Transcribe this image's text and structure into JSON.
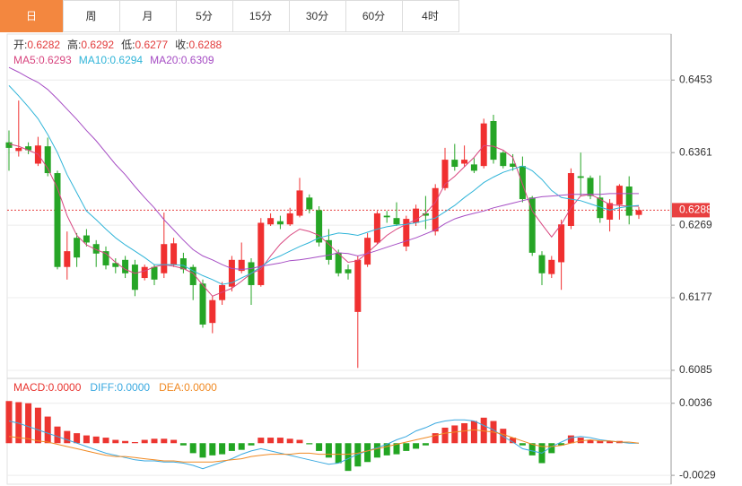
{
  "tabs": [
    "日",
    "周",
    "月",
    "5分",
    "15分",
    "30分",
    "60分",
    "4时"
  ],
  "active_tab": 0,
  "chart_data": [
    {
      "type": "candlestick",
      "info": [
        {
          "label": "开:",
          "value": 0.6282
        },
        {
          "label": "高:",
          "value": 0.6292
        },
        {
          "label": "低:",
          "value": 0.6277
        },
        {
          "label": "收:",
          "value": 0.6288
        }
      ],
      "up_color": "#f03030",
      "down_color": "#26a526",
      "ylim": [
        0.6077,
        0.6509
      ],
      "yticks": [
        0.6453,
        0.6361,
        0.6269,
        0.6177,
        0.6085
      ],
      "grid": true,
      "last_price": 0.6288,
      "candles": {
        "open": [
          0.6374,
          0.6363,
          0.6369,
          0.6347,
          0.6369,
          0.6335,
          0.6216,
          0.6253,
          0.6256,
          0.6245,
          0.6236,
          0.6221,
          0.6225,
          0.6219,
          0.6202,
          0.6216,
          0.6208,
          0.6219,
          0.6227,
          0.6216,
          0.6195,
          0.6145,
          0.6174,
          0.6191,
          0.6211,
          0.6222,
          0.6193,
          0.627,
          0.6274,
          0.627,
          0.6281,
          0.6304,
          0.6288,
          0.625,
          0.6234,
          0.6213,
          0.6159,
          0.6219,
          0.6247,
          0.6281,
          0.6278,
          0.6242,
          0.6272,
          0.6284,
          0.6261,
          0.6316,
          0.6352,
          0.6347,
          0.6346,
          0.6344,
          0.6401,
          0.6361,
          0.6347,
          0.6344,
          0.6304,
          0.6231,
          0.6207,
          0.6222,
          0.6268,
          0.6331,
          0.6329,
          0.6304,
          0.6276,
          0.6295,
          0.6318,
          0.6282
        ],
        "high": [
          0.6389,
          0.6427,
          0.6374,
          0.6381,
          0.638,
          0.6338,
          0.6261,
          0.6259,
          0.6264,
          0.625,
          0.6242,
          0.6227,
          0.623,
          0.6225,
          0.6219,
          0.6219,
          0.6285,
          0.6253,
          0.6234,
          0.6219,
          0.62,
          0.6179,
          0.6197,
          0.623,
          0.6247,
          0.6227,
          0.6278,
          0.6284,
          0.6281,
          0.6291,
          0.6329,
          0.6308,
          0.6293,
          0.6264,
          0.6238,
          0.6219,
          0.623,
          0.6259,
          0.6287,
          0.6287,
          0.6298,
          0.6281,
          0.6295,
          0.6306,
          0.6321,
          0.6367,
          0.6372,
          0.637,
          0.6354,
          0.6404,
          0.6409,
          0.6363,
          0.6359,
          0.6356,
          0.6306,
          0.6236,
          0.623,
          0.6276,
          0.6341,
          0.6361,
          0.6332,
          0.6332,
          0.6302,
          0.6321,
          0.6331,
          0.6292
        ],
        "low": [
          0.6338,
          0.6356,
          0.6359,
          0.6344,
          0.6331,
          0.6213,
          0.62,
          0.6216,
          0.6242,
          0.6216,
          0.6213,
          0.6208,
          0.6202,
          0.6179,
          0.6199,
          0.6193,
          0.6202,
          0.6216,
          0.6208,
          0.6174,
          0.6139,
          0.6132,
          0.6168,
          0.6185,
          0.6208,
          0.6168,
          0.6191,
          0.6268,
          0.6264,
          0.6268,
          0.6279,
          0.6284,
          0.6242,
          0.6219,
          0.6204,
          0.62,
          0.6088,
          0.6216,
          0.6245,
          0.6272,
          0.6268,
          0.6236,
          0.6268,
          0.6264,
          0.6256,
          0.6313,
          0.6338,
          0.6343,
          0.6335,
          0.6341,
          0.6347,
          0.6341,
          0.6338,
          0.6298,
          0.623,
          0.6193,
          0.6202,
          0.6187,
          0.6264,
          0.6306,
          0.6302,
          0.6272,
          0.6261,
          0.6276,
          0.627,
          0.6277
        ],
        "close": [
          0.6367,
          0.6367,
          0.6364,
          0.637,
          0.6335,
          0.6216,
          0.6236,
          0.6228,
          0.6247,
          0.6233,
          0.6218,
          0.6216,
          0.6208,
          0.6187,
          0.6216,
          0.62,
          0.6245,
          0.6246,
          0.6213,
          0.6193,
          0.6143,
          0.6174,
          0.6193,
          0.6225,
          0.6225,
          0.6193,
          0.6272,
          0.6278,
          0.627,
          0.6284,
          0.6313,
          0.6289,
          0.6247,
          0.6225,
          0.6208,
          0.6208,
          0.6225,
          0.6253,
          0.6284,
          0.6279,
          0.627,
          0.6277,
          0.629,
          0.6281,
          0.6316,
          0.6352,
          0.6343,
          0.6352,
          0.6338,
          0.6398,
          0.6352,
          0.6344,
          0.6343,
          0.6302,
          0.6234,
          0.6208,
          0.6225,
          0.627,
          0.6335,
          0.6329,
          0.6306,
          0.6278,
          0.6297,
          0.6319,
          0.6281,
          0.6288
        ]
      },
      "series": [
        {
          "name": "MA5:",
          "color": "#d8457f",
          "current": 0.6293,
          "values": [
            0.6372,
            0.6369,
            0.6364,
            0.6359,
            0.6341,
            0.6316,
            0.6281,
            0.6256,
            0.6244,
            0.6238,
            0.6233,
            0.6222,
            0.6213,
            0.6208,
            0.6211,
            0.6216,
            0.6219,
            0.6217,
            0.6214,
            0.6208,
            0.6193,
            0.6179,
            0.6184,
            0.6189,
            0.6198,
            0.6208,
            0.6213,
            0.623,
            0.6245,
            0.6256,
            0.6264,
            0.6261,
            0.6256,
            0.6245,
            0.6233,
            0.6222,
            0.6224,
            0.6234,
            0.6245,
            0.6256,
            0.6264,
            0.627,
            0.6276,
            0.6284,
            0.6298,
            0.6321,
            0.6331,
            0.6343,
            0.6355,
            0.637,
            0.6369,
            0.6364,
            0.6355,
            0.6321,
            0.6287,
            0.627,
            0.6254,
            0.627,
            0.6291,
            0.6306,
            0.6308,
            0.6302,
            0.6295,
            0.6294,
            0.6293,
            0.6293
          ]
        },
        {
          "name": "MA10:",
          "color": "#2fb4d8",
          "current": 0.6294,
          "values": [
            0.6446,
            0.6433,
            0.6419,
            0.6404,
            0.6384,
            0.6361,
            0.6333,
            0.631,
            0.6287,
            0.6276,
            0.6264,
            0.6253,
            0.6244,
            0.6236,
            0.6228,
            0.6219,
            0.6219,
            0.6219,
            0.6218,
            0.6211,
            0.6205,
            0.62,
            0.6194,
            0.6196,
            0.6202,
            0.6208,
            0.6216,
            0.6225,
            0.623,
            0.6236,
            0.6242,
            0.6247,
            0.6253,
            0.6256,
            0.6259,
            0.6258,
            0.6256,
            0.626,
            0.6264,
            0.6267,
            0.6269,
            0.627,
            0.6272,
            0.6275,
            0.6278,
            0.6286,
            0.6294,
            0.6304,
            0.6313,
            0.6323,
            0.633,
            0.6336,
            0.634,
            0.6344,
            0.6338,
            0.6327,
            0.6313,
            0.6304,
            0.6302,
            0.63,
            0.6296,
            0.6292,
            0.6288,
            0.6291,
            0.6293,
            0.6294
          ]
        },
        {
          "name": "MA20:",
          "color": "#a64dc4",
          "current": 0.6309,
          "values": [
            0.6469,
            0.6463,
            0.6456,
            0.645,
            0.6441,
            0.6429,
            0.6416,
            0.6403,
            0.6389,
            0.6376,
            0.6361,
            0.6346,
            0.6333,
            0.6318,
            0.6304,
            0.6291,
            0.6276,
            0.6263,
            0.625,
            0.6238,
            0.623,
            0.6225,
            0.6219,
            0.6214,
            0.6213,
            0.6214,
            0.6217,
            0.6219,
            0.6221,
            0.6224,
            0.6225,
            0.6227,
            0.6229,
            0.6231,
            0.6234,
            0.6233,
            0.623,
            0.6233,
            0.6237,
            0.6241,
            0.6245,
            0.6249,
            0.6253,
            0.6258,
            0.6263,
            0.6271,
            0.6277,
            0.6281,
            0.6284,
            0.6287,
            0.6291,
            0.6294,
            0.6297,
            0.63,
            0.6303,
            0.6305,
            0.6306,
            0.6307,
            0.6308,
            0.6308,
            0.6308,
            0.6308,
            0.6309,
            0.6309,
            0.6309,
            0.6309
          ]
        }
      ]
    },
    {
      "type": "bar",
      "ylim": [
        -0.0037,
        0.0056
      ],
      "yticks": [
        0.0036,
        -0.0029
      ],
      "up_color": "#ec3530",
      "down_color": "#22a522",
      "series": [
        {
          "name": "MACD:",
          "color": "#e8342f",
          "current": {
            "value": 0,
            "label": "0.0000"
          },
          "values": [
            0.0038,
            0.0037,
            0.0036,
            0.0032,
            0.0024,
            0.0015,
            0.0011,
            0.0009,
            0.0007,
            0.0006,
            0.0005,
            0.0003,
            0.0002,
            0.0001,
            0.0003,
            0.0004,
            0.0004,
            0.0003,
            -0.0002,
            -0.0009,
            -0.0013,
            -0.0011,
            -0.001,
            -0.0007,
            -0.0006,
            -0.0002,
            0.0005,
            0.0005,
            0.0005,
            0.0004,
            0.0003,
            -0.0001,
            -0.0007,
            -0.0013,
            -0.0018,
            -0.0025,
            -0.0021,
            -0.0017,
            -0.0013,
            -0.0011,
            -0.001,
            -0.0007,
            -0.0005,
            -0.0002,
            0.0009,
            0.0014,
            0.0016,
            0.0018,
            0.002,
            0.0023,
            0.002,
            0.0013,
            0.0005,
            -0.0002,
            -0.0011,
            -0.0018,
            -0.0009,
            -0.0002,
            0.0007,
            0.0005,
            0.0003,
            0.0002,
            0.0002,
            0.0002,
            0,
            0
          ]
        },
        {
          "name": "DIFF:",
          "color": "#3aa9e0",
          "current": {
            "value": 0,
            "label": "0.0000"
          },
          "values": [
            0.002,
            0.0018,
            0.0015,
            0.0012,
            0.0009,
            0.0006,
            0.0003,
            0,
            -0.0003,
            -0.0006,
            -0.0009,
            -0.0011,
            -0.0013,
            -0.0015,
            -0.0016,
            -0.0016,
            -0.0017,
            -0.0017,
            -0.0018,
            -0.002,
            -0.0023,
            -0.002,
            -0.0017,
            -0.0014,
            -0.001,
            -0.0007,
            -0.0005,
            -0.0007,
            -0.0009,
            -0.0011,
            -0.0013,
            -0.0015,
            -0.0017,
            -0.0019,
            -0.0018,
            -0.0014,
            -0.001,
            -0.0007,
            -0.0004,
            -0.0001,
            0.0003,
            0.0006,
            0.0011,
            0.0014,
            0.0018,
            0.002,
            0.0021,
            0.0021,
            0.002,
            0.0016,
            0.0012,
            0.0006,
            0.0001,
            -0.0005,
            -0.0007,
            -0.0009,
            -0.0003,
            0.0001,
            0.0005,
            0.0006,
            0.0005,
            0.0003,
            0.0002,
            0.0001,
            0,
            0
          ]
        },
        {
          "name": "DEA:",
          "color": "#f08a24",
          "current": {
            "value": 0,
            "label": "0.0000"
          },
          "values": [
            0.0006,
            0.0005,
            0.0004,
            0.0002,
            0.0001,
            -0.0001,
            -0.0003,
            -0.0005,
            -0.0007,
            -0.0009,
            -0.0011,
            -0.0012,
            -0.0012,
            -0.0013,
            -0.0014,
            -0.0015,
            -0.0016,
            -0.0016,
            -0.0017,
            -0.0017,
            -0.0017,
            -0.0017,
            -0.0016,
            -0.0015,
            -0.0014,
            -0.0012,
            -0.0011,
            -0.001,
            -0.001,
            -0.001,
            -0.0009,
            -0.0009,
            -0.001,
            -0.001,
            -0.001,
            -0.001,
            -0.0009,
            -0.0007,
            -0.0005,
            -0.0003,
            -0.0001,
            0.0001,
            0.0003,
            0.0005,
            0.0007,
            0.0009,
            0.001,
            0.0011,
            0.0012,
            0.0011,
            0.001,
            0.0008,
            0.0005,
            0.0002,
            -0.0001,
            -0.0003,
            -0.0003,
            -0.0002,
            0,
            0.0002,
            0.0003,
            0.0002,
            0.0002,
            0.0001,
            0.0001,
            0
          ]
        }
      ]
    }
  ]
}
